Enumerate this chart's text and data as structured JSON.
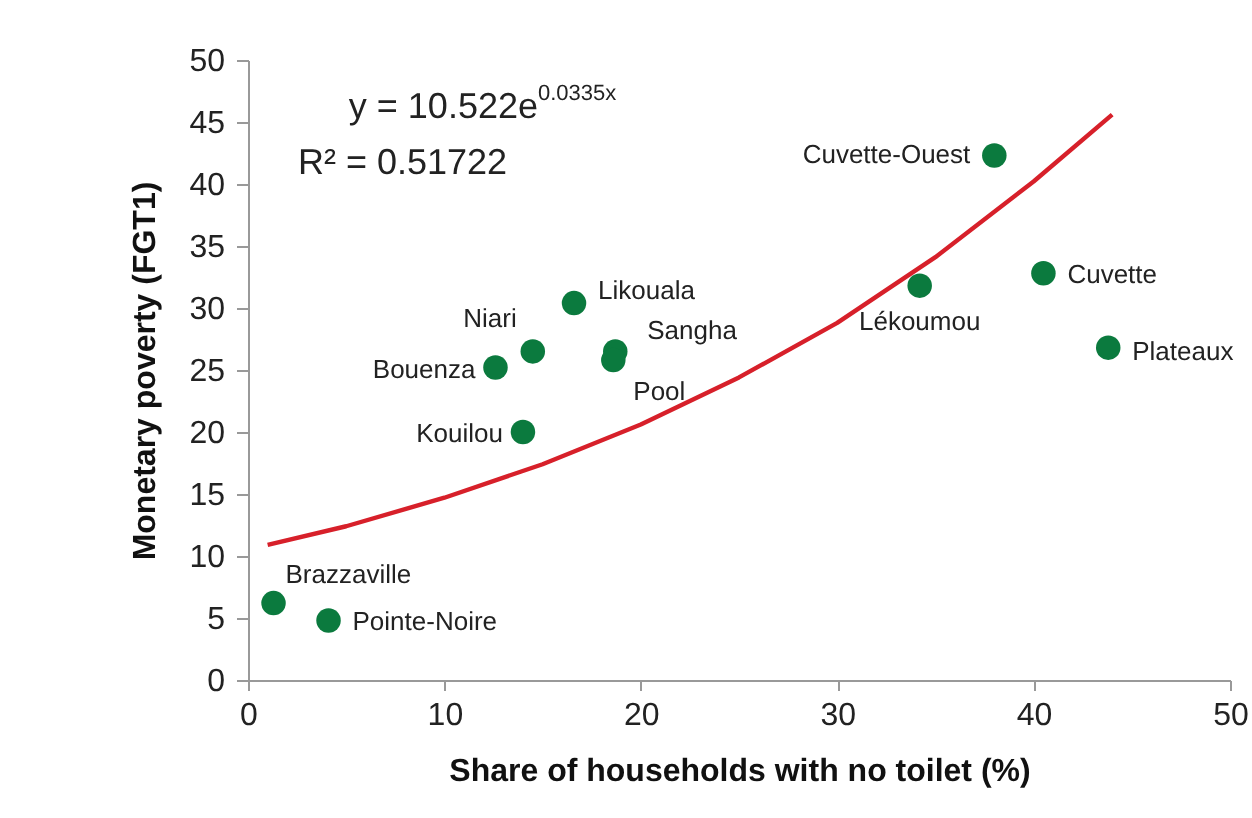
{
  "chart_data": {
    "type": "scatter",
    "xlabel": "Share of households with no toilet (%)",
    "ylabel": "Monetary poverty (FGT1)",
    "annotations": [
      "y = 10.522e$^{0.0335x}$",
      "R² = 0.51722"
    ],
    "xlim": [
      0,
      50
    ],
    "xticks": [
      0,
      10,
      20,
      30,
      40,
      50
    ],
    "ylim": [
      0,
      50
    ],
    "yticks": [
      0,
      5,
      10,
      15,
      20,
      25,
      30,
      35,
      40,
      45,
      50
    ],
    "grid": false,
    "series": [
      {
        "marker": "circle",
        "color": "#0b7a3e",
        "x": [
          1.3,
          4.1,
          12.6,
          14.5,
          14.0,
          16.6,
          18.7,
          18.6,
          34.2,
          38.0,
          40.5,
          43.8
        ],
        "values": [
          6.2,
          4.8,
          25.2,
          26.5,
          20.0,
          30.4,
          26.5,
          25.8,
          31.8,
          42.3,
          32.8,
          26.8
        ],
        "value_labels": [
          "Brazzaville",
          "Pointe-Noire",
          "Bouenza",
          "Niari",
          "Kouilou",
          "Likouala",
          "Sangha",
          "Pool",
          "Lékoumou",
          "Cuvette-Ouest",
          "Cuvette",
          "Plateaux"
        ]
      },
      {
        "type": "line",
        "color": "#d7202a",
        "x": [
          1,
          5,
          10,
          15,
          20,
          25,
          30,
          35,
          40,
          44
        ],
        "values": [
          10.9,
          12.4,
          14.7,
          17.4,
          20.6,
          24.4,
          28.8,
          34.1,
          40.2,
          45.6
        ]
      }
    ]
  }
}
